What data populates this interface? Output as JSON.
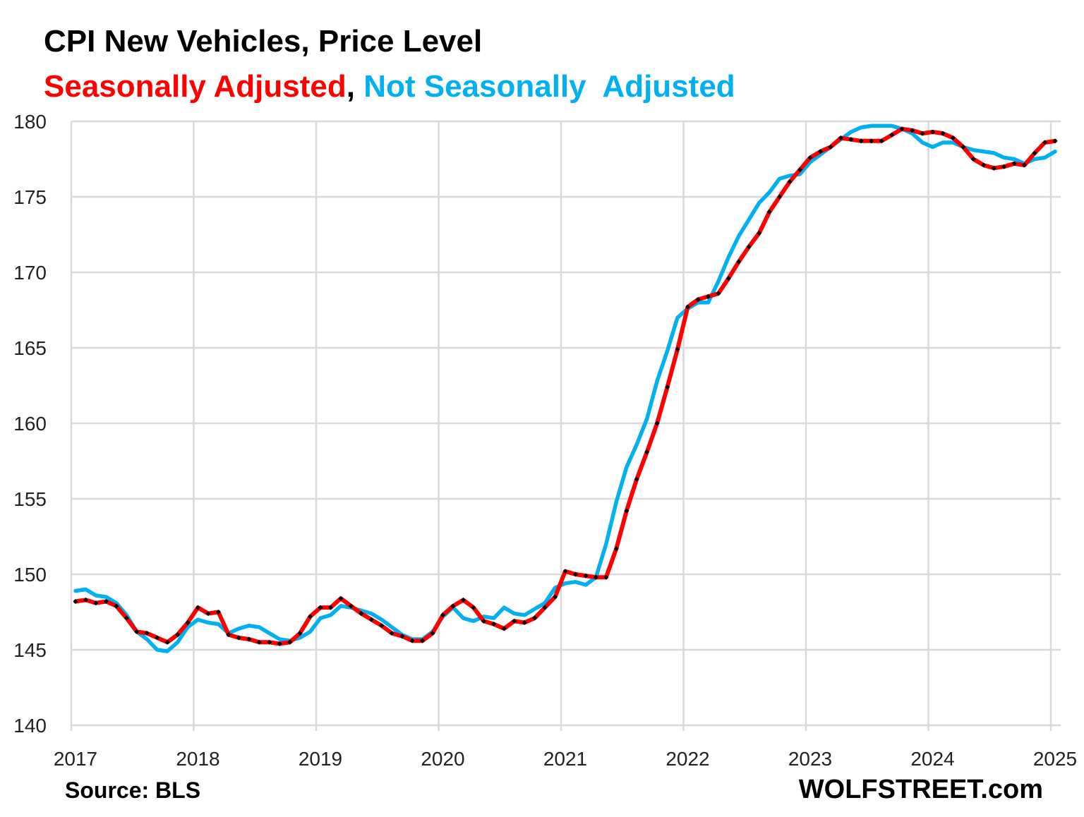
{
  "chart_data": {
    "type": "line",
    "title": "CPI New Vehicles, Price Level",
    "subtitle_parts": [
      "Seasonally Adjusted",
      ", ",
      "Not Seasonally  Adjusted"
    ],
    "source": "Source: BLS",
    "brand": "WOLFSTREET.com",
    "x_start": "2017-01",
    "frequency": "monthly",
    "x_ticks": [
      "2017",
      "2018",
      "2019",
      "2020",
      "2021",
      "2022",
      "2023",
      "2024",
      "2025"
    ],
    "y_ticks": [
      140,
      145,
      150,
      155,
      160,
      165,
      170,
      175,
      180
    ],
    "ylim": [
      140,
      180
    ],
    "grid": true,
    "series": [
      {
        "name": "Seasonally Adjusted",
        "color": "#ff0000",
        "markers": "black diamonds",
        "values": [
          148.2,
          148.3,
          148.1,
          148.2,
          147.9,
          147.1,
          146.2,
          146.1,
          145.8,
          145.5,
          146.0,
          146.8,
          147.8,
          147.4,
          147.5,
          146.0,
          145.8,
          145.7,
          145.5,
          145.5,
          145.4,
          145.5,
          146.1,
          147.2,
          147.8,
          147.8,
          148.4,
          147.9,
          147.4,
          147.0,
          146.6,
          146.1,
          145.9,
          145.6,
          145.6,
          146.1,
          147.3,
          147.9,
          148.3,
          147.8,
          146.9,
          146.7,
          146.4,
          146.9,
          146.8,
          147.1,
          147.8,
          148.5,
          150.2,
          150.0,
          149.9,
          149.8,
          149.8,
          151.7,
          154.2,
          156.3,
          158.1,
          160.0,
          162.4,
          164.9,
          167.7,
          168.2,
          168.4,
          168.6,
          169.6,
          170.7,
          171.7,
          172.6,
          174.0,
          175.0,
          176.0,
          176.8,
          177.6,
          178.0,
          178.3,
          178.9,
          178.8,
          178.7,
          178.7,
          178.7,
          179.1,
          179.5,
          179.4,
          179.2,
          179.3,
          179.2,
          178.9,
          178.3,
          177.5,
          177.1,
          176.9,
          177.0,
          177.2,
          177.1,
          177.9,
          178.6,
          178.7
        ]
      },
      {
        "name": "Not Seasonally  Adjusted",
        "color": "#00b0f0",
        "values": [
          148.9,
          149.0,
          148.6,
          148.5,
          148.1,
          147.3,
          146.2,
          145.7,
          145.0,
          144.9,
          145.5,
          146.5,
          147.0,
          146.8,
          146.7,
          146.1,
          146.4,
          146.6,
          146.5,
          146.1,
          145.7,
          145.6,
          145.8,
          146.2,
          147.1,
          147.3,
          147.9,
          147.8,
          147.6,
          147.4,
          147.0,
          146.5,
          146.0,
          145.7,
          145.7,
          146.2,
          147.2,
          147.8,
          147.1,
          146.9,
          147.2,
          147.1,
          147.8,
          147.4,
          147.3,
          147.7,
          148.1,
          149.1,
          149.4,
          149.5,
          149.3,
          149.8,
          152.0,
          154.8,
          157.1,
          158.6,
          160.3,
          162.8,
          164.8,
          167.0,
          167.6,
          168.0,
          168.0,
          169.4,
          171.0,
          172.4,
          173.5,
          174.6,
          175.3,
          176.2,
          176.4,
          176.5,
          177.3,
          177.8,
          178.3,
          178.8,
          179.3,
          179.6,
          179.7,
          179.7,
          179.7,
          179.5,
          179.2,
          178.6,
          178.3,
          178.6,
          178.6,
          178.3,
          178.1,
          178.0,
          177.9,
          177.6,
          177.5,
          177.2,
          177.5,
          177.6,
          178.0
        ]
      }
    ]
  }
}
